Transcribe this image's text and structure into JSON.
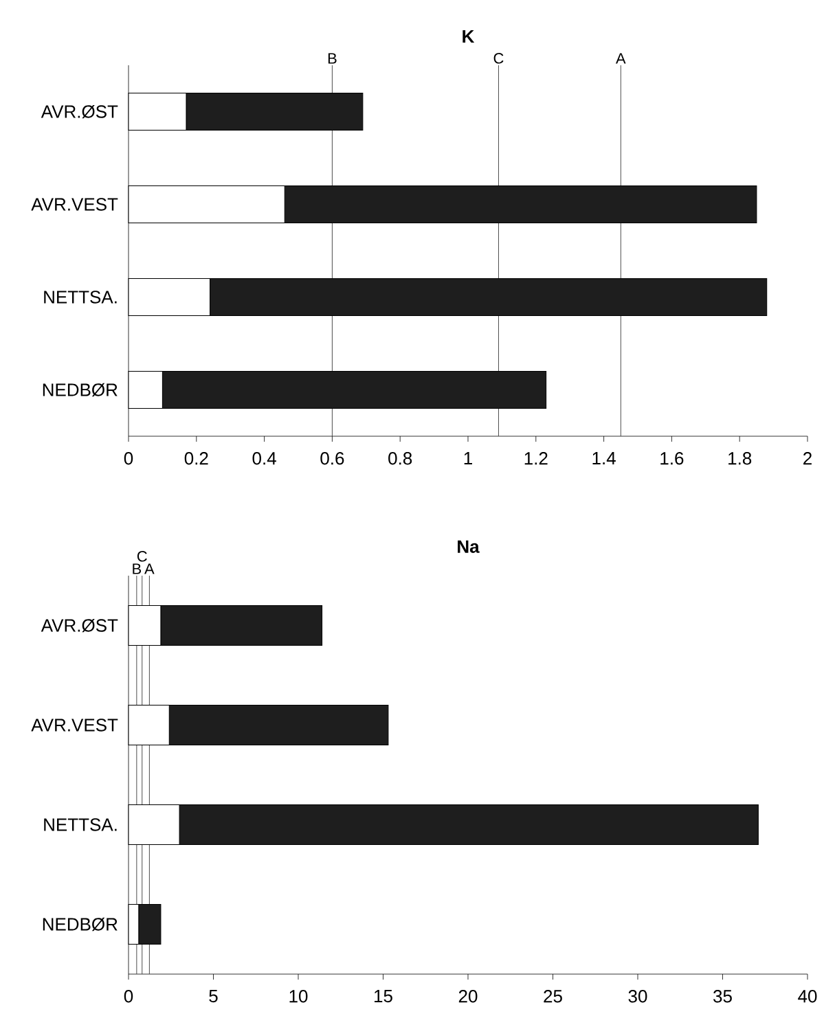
{
  "chart_data": [
    {
      "type": "bar",
      "orientation": "horizontal",
      "stacked": true,
      "title": "K",
      "categories": [
        "AVR.ØST",
        "AVR.VEST",
        "NETTSA.",
        "NEDBØR"
      ],
      "series": [
        {
          "color": "#ffffff",
          "values": [
            0.17,
            0.46,
            0.24,
            0.1
          ]
        },
        {
          "color": "#1e1e1e",
          "values": [
            0.52,
            1.39,
            1.64,
            1.13
          ]
        }
      ],
      "xlim": [
        0,
        2
      ],
      "xticks": [
        0,
        0.2,
        0.4,
        0.6,
        0.8,
        1,
        1.2,
        1.4,
        1.6,
        1.8,
        2
      ],
      "ref_lines": [
        {
          "axis": "x",
          "value": 0.6,
          "label": "B"
        },
        {
          "axis": "x",
          "value": 1.09,
          "label": "C"
        },
        {
          "axis": "x",
          "value": 1.45,
          "label": "A"
        }
      ]
    },
    {
      "type": "bar",
      "orientation": "horizontal",
      "stacked": true,
      "title": "Na",
      "categories": [
        "AVR.ØST",
        "AVR.VEST",
        "NETTSA.",
        "NEDBØR"
      ],
      "series": [
        {
          "color": "#ffffff",
          "values": [
            1.9,
            2.4,
            3.0,
            0.6
          ]
        },
        {
          "color": "#1e1e1e",
          "values": [
            9.5,
            12.9,
            34.1,
            1.3
          ]
        }
      ],
      "xlim": [
        0,
        40
      ],
      "xticks": [
        0,
        5,
        10,
        15,
        20,
        25,
        30,
        35,
        40
      ],
      "ref_lines": [
        {
          "axis": "x",
          "value": 0.48,
          "label": "B"
        },
        {
          "axis": "x",
          "value": 0.8,
          "label": "C"
        },
        {
          "axis": "x",
          "value": 1.23,
          "label": "A"
        }
      ]
    }
  ]
}
